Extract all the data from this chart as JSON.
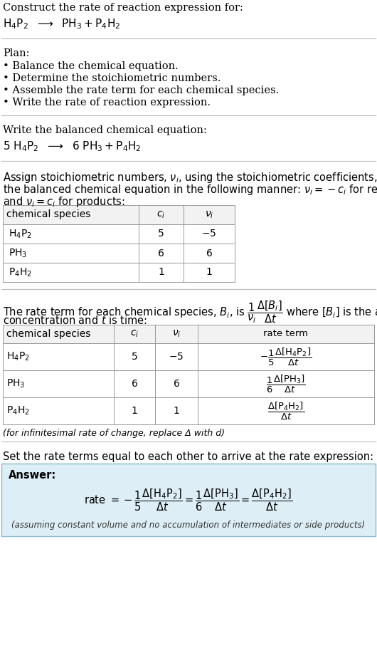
{
  "bg_color": "#ffffff",
  "text_color": "#000000",
  "answer_bg": "#ddeef6",
  "answer_border": "#88bbcc",
  "title_line1": "Construct the rate of reaction expression for:",
  "plan_header": "Plan:",
  "plan_items": [
    "• Balance the chemical equation.",
    "• Determine the stoichiometric numbers.",
    "• Assemble the rate term for each chemical species.",
    "• Write the rate of reaction expression."
  ],
  "balanced_header": "Write the balanced chemical equation:",
  "delta_note": "(for infinitesimal rate of change, replace Δ with d)",
  "section5_text": "Set the rate terms equal to each other to arrive at the rate expression:",
  "answer_label": "Answer:",
  "footnote": "(assuming constant volume and no accumulation of intermediates or side products)",
  "ci_vals": [
    "5",
    "6",
    "1"
  ],
  "nu_vals": [
    "−5",
    "6",
    "1"
  ]
}
